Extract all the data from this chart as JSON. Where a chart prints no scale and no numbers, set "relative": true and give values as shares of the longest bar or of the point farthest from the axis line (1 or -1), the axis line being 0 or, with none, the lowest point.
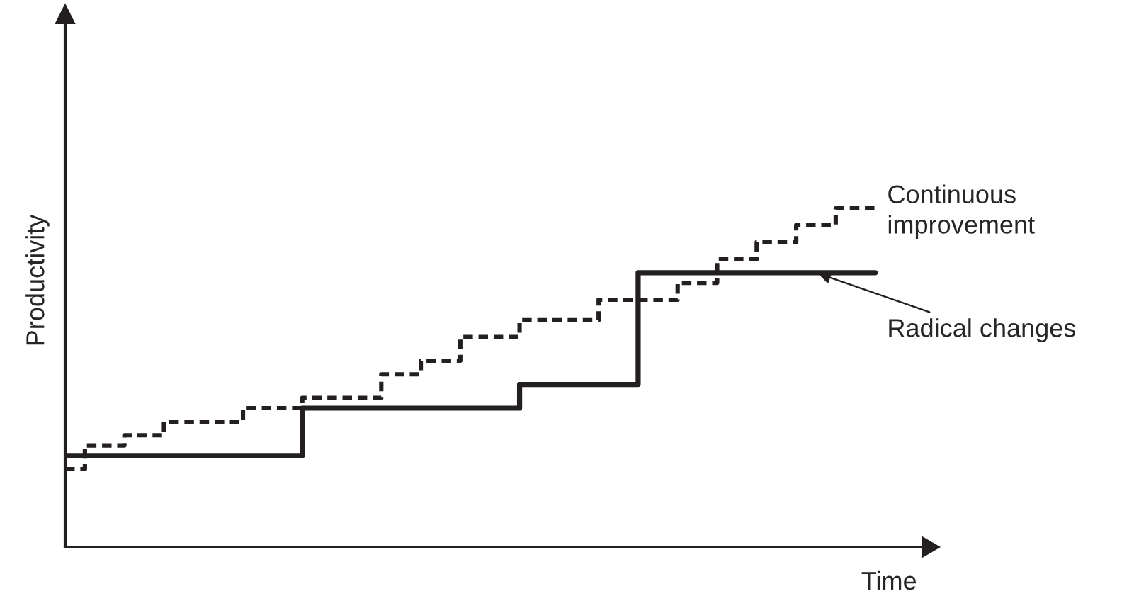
{
  "chart_data": {
    "type": "step",
    "relative": true,
    "xlabel": "Time",
    "ylabel": "Productivity",
    "categories": [
      null,
      null,
      null,
      null,
      null,
      null,
      null,
      null,
      null,
      null,
      null,
      null,
      null,
      null,
      null,
      null,
      null,
      null,
      null,
      null,
      null,
      null,
      null,
      null,
      null,
      null,
      null,
      null,
      null,
      null,
      null,
      null,
      null,
      null,
      null,
      null,
      null,
      null,
      null,
      null,
      null,
      null
    ],
    "series": [
      {
        "name": "Continuous improvement",
        "color": "#231f20",
        "line_style": "dashed",
        "values": [
          0.23,
          0.3,
          0.3,
          0.33,
          0.33,
          0.37,
          0.37,
          0.37,
          0.37,
          0.41,
          0.41,
          0.41,
          0.44,
          0.44,
          0.44,
          0.44,
          0.51,
          0.51,
          0.55,
          0.55,
          0.62,
          0.62,
          0.62,
          0.67,
          0.67,
          0.67,
          0.67,
          0.73,
          0.73,
          0.73,
          0.73,
          0.78,
          0.78,
          0.85,
          0.85,
          0.9,
          0.9,
          0.95,
          0.95,
          1,
          1,
          1
        ]
      },
      {
        "name": "Radical changes",
        "color": "#231f20",
        "line_style": "solid",
        "values": [
          0.27,
          0.27,
          0.27,
          0.27,
          0.27,
          0.27,
          0.27,
          0.27,
          0.27,
          0.27,
          0.27,
          0.27,
          0.41,
          0.41,
          0.41,
          0.41,
          0.41,
          0.41,
          0.41,
          0.41,
          0.41,
          0.41,
          0.41,
          0.48,
          0.48,
          0.48,
          0.48,
          0.48,
          0.48,
          0.81,
          0.81,
          0.81,
          0.81,
          0.81,
          0.81,
          0.81,
          0.81,
          0.81,
          0.81,
          0.81,
          0.81,
          0.81
        ]
      }
    ]
  }
}
